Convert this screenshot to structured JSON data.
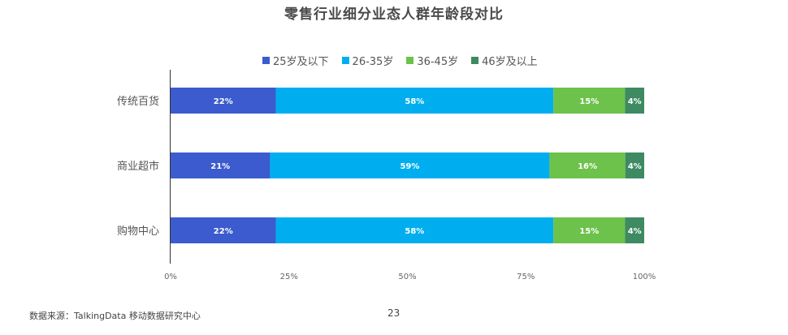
{
  "chart_data": {
    "type": "bar",
    "orientation": "horizontal",
    "stacked": true,
    "title": "零售行业细分业态人群年龄段对比",
    "categories": [
      "传统百货",
      "商业超市",
      "购物中心"
    ],
    "series": [
      {
        "name": "25岁及以下",
        "color": "#3b5bce",
        "values": [
          22,
          21,
          22
        ],
        "labels": [
          "22%",
          "21%",
          "22%"
        ]
      },
      {
        "name": "26-35岁",
        "color": "#00aeef",
        "values": [
          58,
          59,
          58
        ],
        "labels": [
          "58%",
          "59%",
          "58%"
        ]
      },
      {
        "name": "36-45岁",
        "color": "#6cc24a",
        "values": [
          15,
          16,
          15
        ],
        "labels": [
          "15%",
          "16%",
          "15%"
        ]
      },
      {
        "name": "46岁及以上",
        "color": "#3d8a63",
        "values": [
          4,
          4,
          4
        ],
        "labels": [
          "4%",
          "4%",
          "4%"
        ]
      }
    ],
    "xlim": [
      0,
      100
    ],
    "xticks": [
      "0%",
      "25%",
      "50%",
      "75%",
      "100%"
    ],
    "grid": false,
    "legend_position": "top"
  },
  "footer": {
    "source": "数据来源：TalkingData 移动数据研究中心",
    "page": "23"
  }
}
